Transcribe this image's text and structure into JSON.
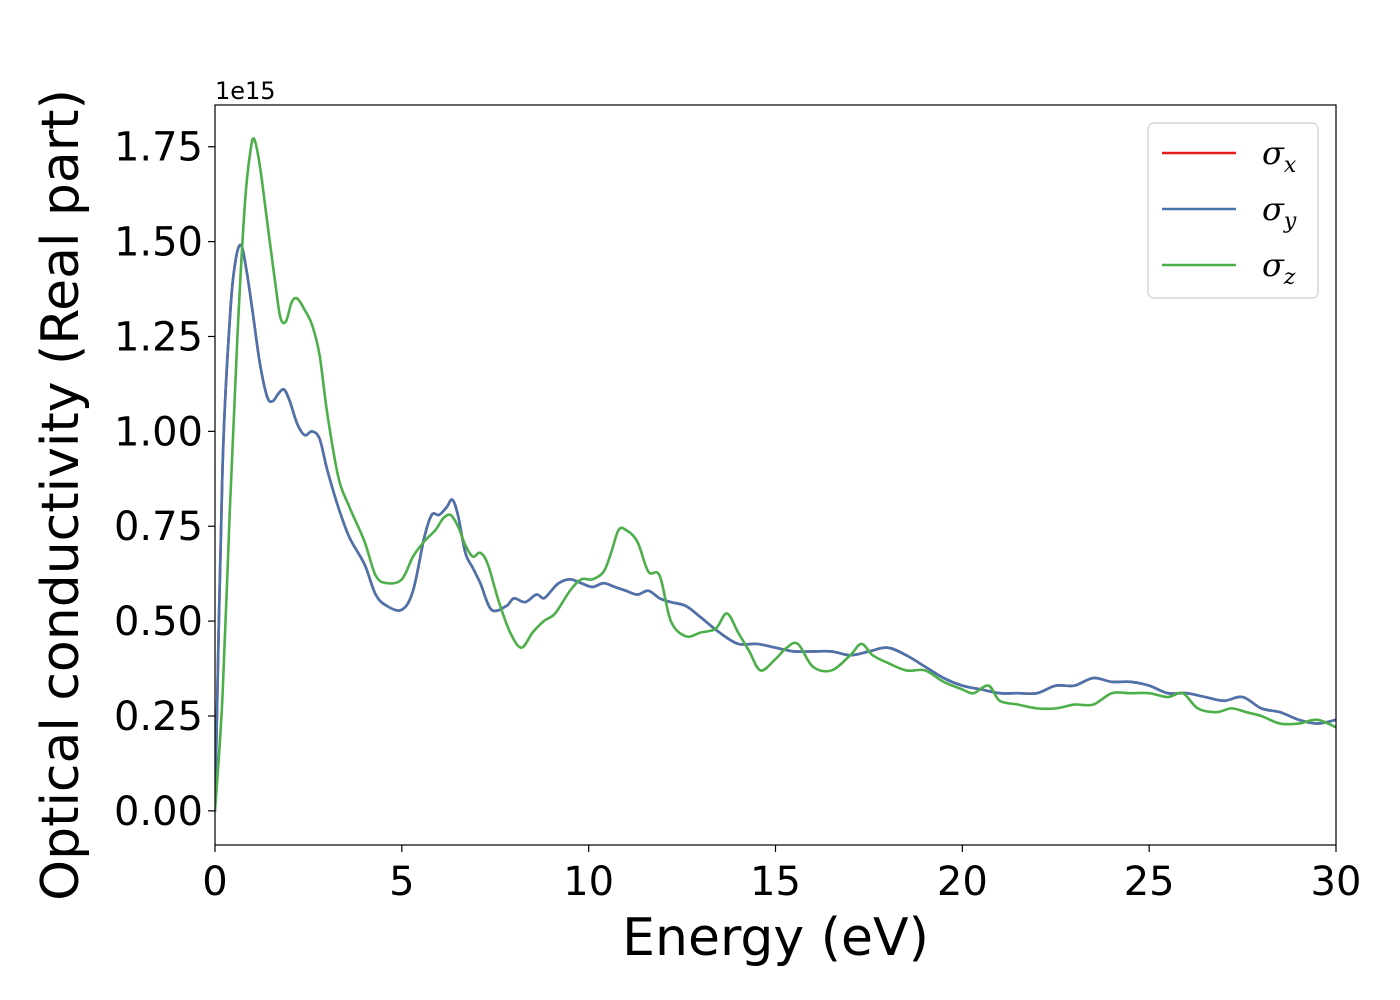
{
  "chart_data": {
    "type": "line",
    "xlabel": "Energy (eV)",
    "ylabel": "Optical conductivity (Real part)",
    "y_offset_label": "1e15",
    "xlim": [
      0,
      30
    ],
    "ylim": [
      -0.09,
      1.86
    ],
    "x_ticks": [
      0,
      5,
      10,
      15,
      20,
      25,
      30
    ],
    "x_tick_labels": [
      "0",
      "5",
      "10",
      "15",
      "20",
      "25",
      "30"
    ],
    "y_ticks": [
      0.0,
      0.25,
      0.5,
      0.75,
      1.0,
      1.25,
      1.5,
      1.75
    ],
    "y_tick_labels": [
      "0.00",
      "0.25",
      "0.50",
      "0.75",
      "1.00",
      "1.25",
      "1.50",
      "1.75"
    ],
    "grid": false,
    "legend_position": "top-right",
    "series": [
      {
        "name": "σx",
        "symbol": "σ",
        "subscript": "x",
        "color": "#e41a1c",
        "x": [
          0,
          0.2,
          0.4,
          0.55,
          0.7,
          0.85,
          1.0,
          1.2,
          1.4,
          1.55,
          1.7,
          1.85,
          2.0,
          2.2,
          2.4,
          2.6,
          2.8,
          3.0,
          3.3,
          3.6,
          4.0,
          4.3,
          4.6,
          5.0,
          5.3,
          5.6,
          5.8,
          6.0,
          6.2,
          6.35,
          6.5,
          6.7,
          6.9,
          7.1,
          7.4,
          7.8,
          8.0,
          8.3,
          8.6,
          8.8,
          9.0,
          9.2,
          9.5,
          9.8,
          10.1,
          10.4,
          10.7,
          11.0,
          11.3,
          11.6,
          11.9,
          12.2,
          12.6,
          13.0,
          13.5,
          14.0,
          14.5,
          15.0,
          15.5,
          16.0,
          16.5,
          17.0,
          17.5,
          18.0,
          18.5,
          19.0,
          19.5,
          20.0,
          20.5,
          21.0,
          21.5,
          22.0,
          22.5,
          23.0,
          23.5,
          24.0,
          24.5,
          25.0,
          25.5,
          26.0,
          26.5,
          27.0,
          27.5,
          28.0,
          28.5,
          29.0,
          29.5,
          30.0
        ],
        "values": [
          0.0,
          0.9,
          1.3,
          1.45,
          1.49,
          1.42,
          1.32,
          1.18,
          1.09,
          1.08,
          1.1,
          1.11,
          1.08,
          1.02,
          0.99,
          1.0,
          0.98,
          0.9,
          0.8,
          0.72,
          0.65,
          0.57,
          0.54,
          0.53,
          0.58,
          0.72,
          0.78,
          0.78,
          0.8,
          0.82,
          0.78,
          0.68,
          0.64,
          0.6,
          0.53,
          0.54,
          0.56,
          0.55,
          0.57,
          0.56,
          0.58,
          0.6,
          0.61,
          0.6,
          0.59,
          0.6,
          0.59,
          0.58,
          0.57,
          0.58,
          0.56,
          0.55,
          0.54,
          0.51,
          0.47,
          0.44,
          0.44,
          0.43,
          0.42,
          0.42,
          0.42,
          0.41,
          0.42,
          0.43,
          0.41,
          0.38,
          0.35,
          0.33,
          0.32,
          0.31,
          0.31,
          0.31,
          0.33,
          0.33,
          0.35,
          0.34,
          0.34,
          0.33,
          0.31,
          0.31,
          0.3,
          0.29,
          0.3,
          0.27,
          0.26,
          0.24,
          0.23,
          0.24
        ]
      },
      {
        "name": "σy",
        "symbol": "σ",
        "subscript": "y",
        "color": "#4a74ad",
        "x": [
          0,
          0.2,
          0.4,
          0.55,
          0.7,
          0.85,
          1.0,
          1.2,
          1.4,
          1.55,
          1.7,
          1.85,
          2.0,
          2.2,
          2.4,
          2.6,
          2.8,
          3.0,
          3.3,
          3.6,
          4.0,
          4.3,
          4.6,
          5.0,
          5.3,
          5.6,
          5.8,
          6.0,
          6.2,
          6.35,
          6.5,
          6.7,
          6.9,
          7.1,
          7.4,
          7.8,
          8.0,
          8.3,
          8.6,
          8.8,
          9.0,
          9.2,
          9.5,
          9.8,
          10.1,
          10.4,
          10.7,
          11.0,
          11.3,
          11.6,
          11.9,
          12.2,
          12.6,
          13.0,
          13.5,
          14.0,
          14.5,
          15.0,
          15.5,
          16.0,
          16.5,
          17.0,
          17.5,
          18.0,
          18.5,
          19.0,
          19.5,
          20.0,
          20.5,
          21.0,
          21.5,
          22.0,
          22.5,
          23.0,
          23.5,
          24.0,
          24.5,
          25.0,
          25.5,
          26.0,
          26.5,
          27.0,
          27.5,
          28.0,
          28.5,
          29.0,
          29.5,
          30.0
        ],
        "values": [
          0.0,
          0.9,
          1.3,
          1.45,
          1.49,
          1.42,
          1.32,
          1.18,
          1.09,
          1.08,
          1.1,
          1.11,
          1.08,
          1.02,
          0.99,
          1.0,
          0.98,
          0.9,
          0.8,
          0.72,
          0.65,
          0.57,
          0.54,
          0.53,
          0.58,
          0.72,
          0.78,
          0.78,
          0.8,
          0.82,
          0.78,
          0.68,
          0.64,
          0.6,
          0.53,
          0.54,
          0.56,
          0.55,
          0.57,
          0.56,
          0.58,
          0.6,
          0.61,
          0.6,
          0.59,
          0.6,
          0.59,
          0.58,
          0.57,
          0.58,
          0.56,
          0.55,
          0.54,
          0.51,
          0.47,
          0.44,
          0.44,
          0.43,
          0.42,
          0.42,
          0.42,
          0.41,
          0.42,
          0.43,
          0.41,
          0.38,
          0.35,
          0.33,
          0.32,
          0.31,
          0.31,
          0.31,
          0.33,
          0.33,
          0.35,
          0.34,
          0.34,
          0.33,
          0.31,
          0.31,
          0.3,
          0.29,
          0.3,
          0.27,
          0.26,
          0.24,
          0.23,
          0.24
        ]
      },
      {
        "name": "σz",
        "symbol": "σ",
        "subscript": "z",
        "color": "#4daf4a",
        "x": [
          0,
          0.2,
          0.4,
          0.6,
          0.8,
          0.95,
          1.05,
          1.2,
          1.4,
          1.6,
          1.75,
          1.9,
          2.05,
          2.2,
          2.4,
          2.6,
          2.8,
          3.0,
          3.3,
          3.6,
          4.0,
          4.3,
          4.6,
          5.0,
          5.3,
          5.6,
          5.9,
          6.1,
          6.3,
          6.5,
          6.7,
          6.9,
          7.1,
          7.3,
          7.6,
          7.9,
          8.2,
          8.5,
          8.8,
          9.1,
          9.5,
          9.8,
          10.1,
          10.4,
          10.6,
          10.8,
          11.0,
          11.3,
          11.6,
          11.9,
          12.2,
          12.6,
          13.0,
          13.4,
          13.7,
          14.0,
          14.3,
          14.6,
          15.0,
          15.3,
          15.6,
          16.0,
          16.5,
          17.0,
          17.3,
          17.6,
          18.0,
          18.5,
          19.0,
          19.5,
          20.0,
          20.3,
          20.7,
          21.0,
          21.5,
          22.0,
          22.5,
          23.0,
          23.5,
          24.0,
          24.5,
          25.0,
          25.5,
          25.9,
          26.3,
          26.8,
          27.2,
          27.6,
          28.0,
          28.5,
          29.0,
          29.5,
          30.0
        ],
        "values": [
          0.0,
          0.3,
          0.8,
          1.25,
          1.6,
          1.74,
          1.77,
          1.7,
          1.55,
          1.4,
          1.3,
          1.29,
          1.34,
          1.35,
          1.32,
          1.28,
          1.2,
          1.05,
          0.88,
          0.8,
          0.71,
          0.62,
          0.6,
          0.61,
          0.67,
          0.71,
          0.74,
          0.77,
          0.78,
          0.75,
          0.7,
          0.67,
          0.68,
          0.65,
          0.55,
          0.47,
          0.43,
          0.47,
          0.5,
          0.52,
          0.58,
          0.61,
          0.61,
          0.63,
          0.68,
          0.74,
          0.74,
          0.71,
          0.63,
          0.62,
          0.5,
          0.46,
          0.47,
          0.48,
          0.52,
          0.47,
          0.42,
          0.37,
          0.4,
          0.43,
          0.44,
          0.38,
          0.37,
          0.41,
          0.44,
          0.41,
          0.39,
          0.37,
          0.37,
          0.34,
          0.32,
          0.31,
          0.33,
          0.29,
          0.28,
          0.27,
          0.27,
          0.28,
          0.28,
          0.31,
          0.31,
          0.31,
          0.3,
          0.31,
          0.27,
          0.26,
          0.27,
          0.26,
          0.25,
          0.23,
          0.23,
          0.24,
          0.22
        ]
      }
    ]
  }
}
